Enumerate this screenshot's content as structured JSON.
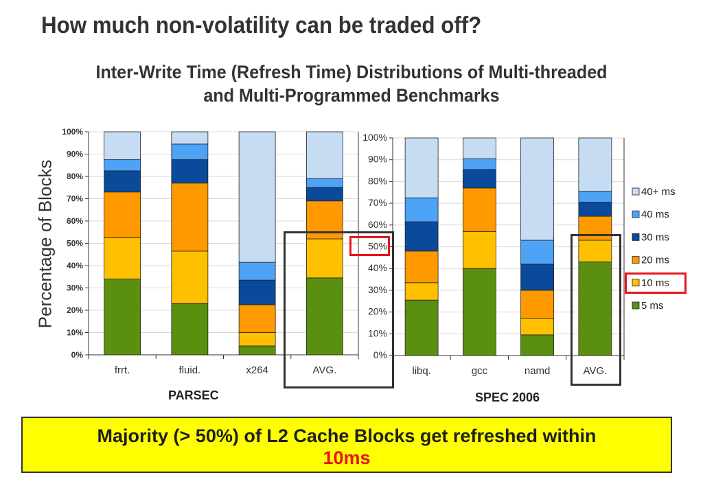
{
  "slide": {
    "title": "How much non-volatility can be traded off?",
    "subtitle_line1": "Inter-Write Time (Refresh Time) Distributions of  Multi-threaded",
    "subtitle_line2": "and Multi-Programmed Benchmarks",
    "y_axis_label": "Percentage of Blocks",
    "banner_text": "Majority  (> 50%) of L2 Cache Blocks get refreshed within",
    "banner_highlight": "10ms"
  },
  "colors": {
    "5 ms": "#5b8f0f",
    "10 ms": "#ffc000",
    "20 ms": "#ff9900",
    "30 ms": "#0b4a9a",
    "40 ms": "#4da3f5",
    "40+ ms": "#c6dcf3",
    "highlight_red": "#e8141c",
    "banner_bg": "#ffff00"
  },
  "chart_data": [
    {
      "type": "bar",
      "stacked": true,
      "title": "PARSEC",
      "categories": [
        "frrt.",
        "fluid.",
        "x264",
        "AVG."
      ],
      "ylim": [
        0,
        100
      ],
      "yticks": [
        "0%",
        "10%",
        "20%",
        "30%",
        "40%",
        "50%",
        "60%",
        "70%",
        "80%",
        "90%",
        "100%"
      ],
      "series": [
        {
          "name": "5 ms",
          "values": [
            34,
            23,
            4,
            34.5
          ]
        },
        {
          "name": "10 ms",
          "values": [
            18.5,
            23.5,
            6,
            17.5
          ]
        },
        {
          "name": "20 ms",
          "values": [
            20.5,
            30.5,
            12.5,
            17
          ]
        },
        {
          "name": "30 ms",
          "values": [
            9.5,
            10.5,
            11,
            6
          ]
        },
        {
          "name": "40 ms",
          "values": [
            5,
            7,
            8,
            4
          ]
        },
        {
          "name": "40+ ms",
          "values": [
            12.5,
            5.5,
            58.5,
            21
          ]
        }
      ]
    },
    {
      "type": "bar",
      "stacked": true,
      "title": "SPEC 2006",
      "categories": [
        "libq.",
        "gcc",
        "namd",
        "AVG."
      ],
      "ylim": [
        0,
        100
      ],
      "yticks": [
        "0%",
        "10%",
        "20%",
        "30%",
        "40%",
        "50%",
        "60%",
        "70%",
        "80%",
        "90%",
        "100%"
      ],
      "legend": [
        "40+ ms",
        "40 ms",
        "30 ms",
        "20 ms",
        "10 ms",
        "5 ms"
      ],
      "series": [
        {
          "name": "5 ms",
          "values": [
            25.5,
            40,
            9.5,
            43
          ]
        },
        {
          "name": "10 ms",
          "values": [
            8,
            17,
            7.5,
            10
          ]
        },
        {
          "name": "20 ms",
          "values": [
            14.5,
            20,
            13,
            11
          ]
        },
        {
          "name": "30 ms",
          "values": [
            13.5,
            8.5,
            12,
            6.5
          ]
        },
        {
          "name": "40 ms",
          "values": [
            11,
            5,
            11,
            5
          ]
        },
        {
          "name": "40+ ms",
          "values": [
            27.5,
            9.5,
            47,
            24.5
          ]
        }
      ]
    }
  ]
}
